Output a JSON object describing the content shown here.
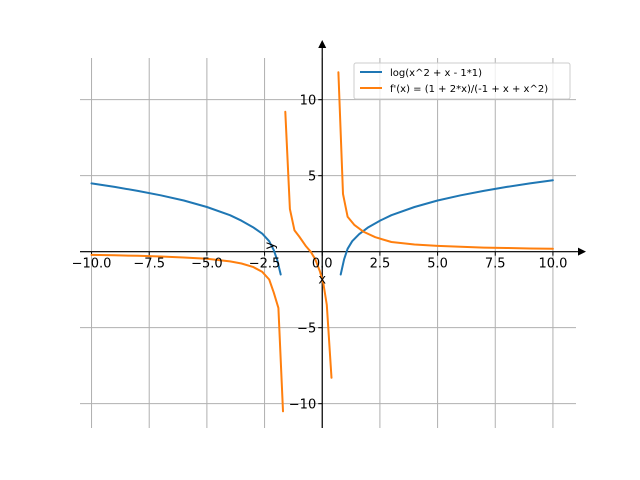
{
  "chart_data": {
    "type": "line",
    "title": "",
    "xlabel": "x",
    "ylabel": "y",
    "xlim": [
      -10.5,
      11.0
    ],
    "ylim": [
      -11.6,
      13.4
    ],
    "grid": true,
    "legend_position": "top-right",
    "x_ticks": [
      -10.0,
      -7.5,
      -5.0,
      -2.5,
      0.0,
      2.5,
      5.0,
      7.5,
      10.0
    ],
    "x_tick_labels": [
      "−10.0",
      "−7.5",
      "−5.0",
      "−2.5",
      "0.0",
      "2.5",
      "5.0",
      "7.5",
      "10.0"
    ],
    "y_ticks": [
      -10,
      -5,
      5,
      10
    ],
    "y_tick_labels": [
      "−10",
      "−5",
      "5",
      "10"
    ],
    "series": [
      {
        "name": "log(x^2 + x - 1*1)",
        "color": "#1f77b4",
        "segments": [
          [
            [
              -10.0,
              4.49
            ],
            [
              -9.0,
              4.26
            ],
            [
              -8.0,
              4.0
            ],
            [
              -7.0,
              3.71
            ],
            [
              -6.0,
              3.37
            ],
            [
              -5.0,
              2.94
            ],
            [
              -4.0,
              2.4
            ],
            [
              -3.5,
              2.04
            ],
            [
              -3.0,
              1.61
            ],
            [
              -2.6,
              1.18
            ],
            [
              -2.3,
              0.69
            ],
            [
              -2.1,
              0.1
            ],
            [
              -1.95,
              -0.55
            ],
            [
              -1.8,
              -1.5
            ]
          ],
          [
            [
              0.8,
              -1.5
            ],
            [
              0.95,
              -0.5
            ],
            [
              1.1,
              0.19
            ],
            [
              1.3,
              0.69
            ],
            [
              1.6,
              1.15
            ],
            [
              2.0,
              1.61
            ],
            [
              2.5,
              2.04
            ],
            [
              3.0,
              2.4
            ],
            [
              4.0,
              2.94
            ],
            [
              5.0,
              3.37
            ],
            [
              6.0,
              3.71
            ],
            [
              7.0,
              4.0
            ],
            [
              8.0,
              4.26
            ],
            [
              9.0,
              4.49
            ],
            [
              10.0,
              4.7
            ]
          ]
        ]
      },
      {
        "name": "f'(x) = (1 + 2*x)/(-1 + x + x^2)",
        "color": "#ff7f0e",
        "segments": [
          [
            [
              -10.0,
              -0.21
            ],
            [
              -9.0,
              -0.24
            ],
            [
              -8.0,
              -0.27
            ],
            [
              -7.0,
              -0.32
            ],
            [
              -6.0,
              -0.38
            ],
            [
              -5.0,
              -0.47
            ],
            [
              -4.0,
              -0.64
            ],
            [
              -3.5,
              -0.78
            ],
            [
              -3.0,
              -1.0
            ],
            [
              -2.6,
              -1.33
            ],
            [
              -2.3,
              -1.83
            ],
            [
              -2.1,
              -2.7
            ],
            [
              -1.9,
              -3.7
            ],
            [
              -1.7,
              -10.5
            ]
          ],
          [
            [
              -1.6,
              9.2
            ],
            [
              -1.4,
              2.8
            ],
            [
              -1.2,
              1.4
            ],
            [
              -1.0,
              1.0
            ],
            [
              -0.7,
              0.35
            ],
            [
              -0.5,
              0.0
            ],
            [
              -0.3,
              -0.5
            ],
            [
              -0.1,
              -1.3
            ],
            [
              0.05,
              -2.1
            ],
            [
              0.2,
              -3.5
            ],
            [
              0.4,
              -8.3
            ]
          ],
          [
            [
              0.7,
              11.8
            ],
            [
              0.9,
              3.8
            ],
            [
              1.1,
              2.3
            ],
            [
              1.4,
              1.75
            ],
            [
              1.8,
              1.3
            ],
            [
              2.3,
              0.95
            ],
            [
              3.0,
              0.64
            ],
            [
              4.0,
              0.47
            ],
            [
              5.0,
              0.38
            ],
            [
              6.0,
              0.32
            ],
            [
              7.0,
              0.27
            ],
            [
              8.0,
              0.24
            ],
            [
              9.0,
              0.21
            ],
            [
              10.0,
              0.19
            ]
          ]
        ]
      }
    ]
  }
}
